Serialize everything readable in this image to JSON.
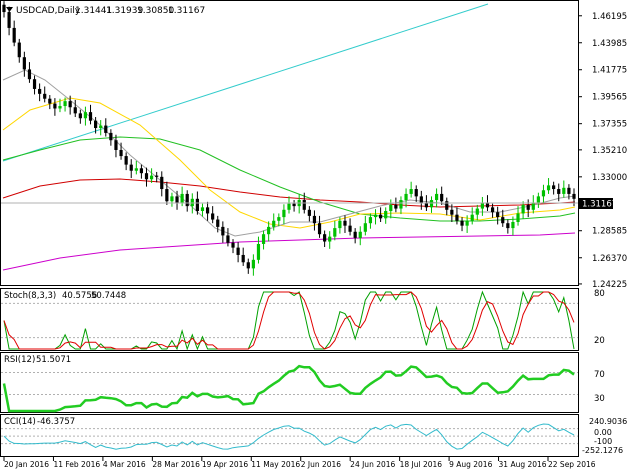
{
  "header": {
    "symbol": "USDCAD,Daily",
    "open": "1.31441",
    "high": "1.31939",
    "low": "1.30850",
    "close": "1.31167"
  },
  "colors": {
    "background": "#ffffff",
    "frame": "#000000",
    "bull_candle": "#00c000",
    "bear_candle": "#000000",
    "ma_yellow": "#ffd700",
    "ma_red": "#d00000",
    "ma_green": "#22c022",
    "ma_grey": "#a0a0a0",
    "ma_magenta": "#cc00cc",
    "trendline_cyan": "#33cccc",
    "stoch_main": "#00a000",
    "stoch_signal": "#e00000",
    "rsi_line": "#22cc22",
    "cci_line": "#33bbcc",
    "level_line": "#b0b0b0"
  },
  "price_axis": {
    "labels": [
      "1.46195",
      "1.43985",
      "1.41775",
      "1.39565",
      "1.37355",
      "1.35210",
      "1.33000",
      "1.28585",
      "1.26370",
      "1.24225"
    ],
    "current_price": "1.31167"
  },
  "date_axis": {
    "labels": [
      "20 Jan 2016",
      "11 Feb 2016",
      "4 Mar 2016",
      "28 Mar 2016",
      "19 Apr 2016",
      "11 May 2016",
      "2 Jun 2016",
      "24 Jun 2016",
      "18 Jul 2016",
      "9 Aug 2016",
      "31 Aug 2016",
      "22 Sep 2016"
    ]
  },
  "stoch": {
    "label": "Stoch(8,3,3)",
    "main": "40.5756",
    "signal": "50.7448",
    "levels": [
      "80",
      "20"
    ]
  },
  "rsi": {
    "label": "RSI(12)",
    "value": "51.5071",
    "levels": [
      "70",
      "30"
    ]
  },
  "cci": {
    "label": "CCI(14)",
    "value": "-46.3757",
    "scale": [
      "240.9036",
      "0.00",
      "-100",
      "-252.1276"
    ]
  },
  "chart_data": {
    "type": "candlestick",
    "symbol": "USDCAD",
    "timeframe": "Daily",
    "price_range": [
      1.2422,
      1.4716
    ],
    "close_series": [
      1.465,
      1.452,
      1.44,
      1.428,
      1.418,
      1.41,
      1.402,
      1.398,
      1.394,
      1.39,
      1.386,
      1.388,
      1.392,
      1.387,
      1.382,
      1.378,
      1.383,
      1.376,
      1.37,
      1.372,
      1.366,
      1.36,
      1.352,
      1.347,
      1.34,
      1.335,
      1.337,
      1.333,
      1.328,
      1.331,
      1.33,
      1.32,
      1.31,
      1.314,
      1.309,
      1.316,
      1.306,
      1.312,
      1.302,
      1.305,
      1.3,
      1.295,
      1.289,
      1.282,
      1.276,
      1.272,
      1.266,
      1.26,
      1.255,
      1.262,
      1.275,
      1.283,
      1.289,
      1.294,
      1.297,
      1.303,
      1.308,
      1.306,
      1.311,
      1.303,
      1.298,
      1.292,
      1.283,
      1.277,
      1.281,
      1.288,
      1.294,
      1.29,
      1.285,
      1.28,
      1.285,
      1.292,
      1.297,
      1.299,
      1.296,
      1.302,
      1.307,
      1.304,
      1.311,
      1.316,
      1.32,
      1.314,
      1.309,
      1.305,
      1.311,
      1.316,
      1.31,
      1.303,
      1.299,
      1.294,
      1.29,
      1.294,
      1.299,
      1.304,
      1.309,
      1.305,
      1.301,
      1.297,
      1.292,
      1.288,
      1.293,
      1.3,
      1.307,
      1.303,
      1.309,
      1.314,
      1.319,
      1.323,
      1.32,
      1.316,
      1.321,
      1.316,
      1.312
    ],
    "indicator_values": {
      "stoch_main": 40.5756,
      "stoch_signal": 50.7448,
      "rsi": 51.5071,
      "cci": -46.3757
    },
    "cci_range": [
      -252.1276,
      240.9036
    ],
    "stoch_levels": [
      20,
      80
    ],
    "rsi_levels": [
      30,
      70
    ]
  }
}
